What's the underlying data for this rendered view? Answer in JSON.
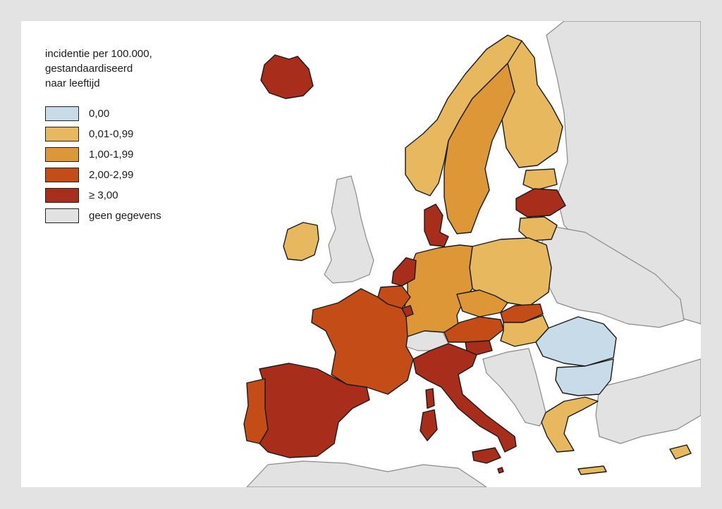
{
  "legend": {
    "title_lines": [
      "incidentie per 100.000,",
      "gestandaardiseerd",
      "naar leeftijd"
    ],
    "items": [
      {
        "label": "0,00",
        "color": "#c7dbe8"
      },
      {
        "label": "0,01-0,99",
        "color": "#e8b85e"
      },
      {
        "label": "1,00-1,99",
        "color": "#dd9736"
      },
      {
        "label": "2,00-2,99",
        "color": "#c44d17"
      },
      {
        "label": "≥ 3,00",
        "color": "#a82d1a"
      },
      {
        "label": "geen gegevens",
        "color": "#e2e2e2"
      }
    ]
  },
  "map": {
    "countries": [
      {
        "id": "iceland",
        "class": 4
      },
      {
        "id": "ireland",
        "class": 1
      },
      {
        "id": "united-kingdom",
        "class": 5
      },
      {
        "id": "norway",
        "class": 1
      },
      {
        "id": "sweden",
        "class": 2
      },
      {
        "id": "finland",
        "class": 1
      },
      {
        "id": "estonia",
        "class": 1
      },
      {
        "id": "latvia",
        "class": 4
      },
      {
        "id": "lithuania",
        "class": 1
      },
      {
        "id": "denmark",
        "class": 4
      },
      {
        "id": "netherlands",
        "class": 4
      },
      {
        "id": "belgium",
        "class": 3
      },
      {
        "id": "luxembourg",
        "class": 4
      },
      {
        "id": "france",
        "class": 3
      },
      {
        "id": "germany",
        "class": 2
      },
      {
        "id": "poland",
        "class": 1
      },
      {
        "id": "czechia",
        "class": 2
      },
      {
        "id": "slovakia",
        "class": 3
      },
      {
        "id": "austria",
        "class": 3
      },
      {
        "id": "hungary",
        "class": 1
      },
      {
        "id": "switzerland",
        "class": 5
      },
      {
        "id": "italy",
        "class": 4
      },
      {
        "id": "slovenia",
        "class": 4
      },
      {
        "id": "spain",
        "class": 4
      },
      {
        "id": "portugal",
        "class": 3
      },
      {
        "id": "romania",
        "class": 0
      },
      {
        "id": "bulgaria",
        "class": 0
      },
      {
        "id": "greece",
        "class": 1
      },
      {
        "id": "cyprus",
        "class": 1
      },
      {
        "id": "malta",
        "class": 4
      }
    ]
  }
}
